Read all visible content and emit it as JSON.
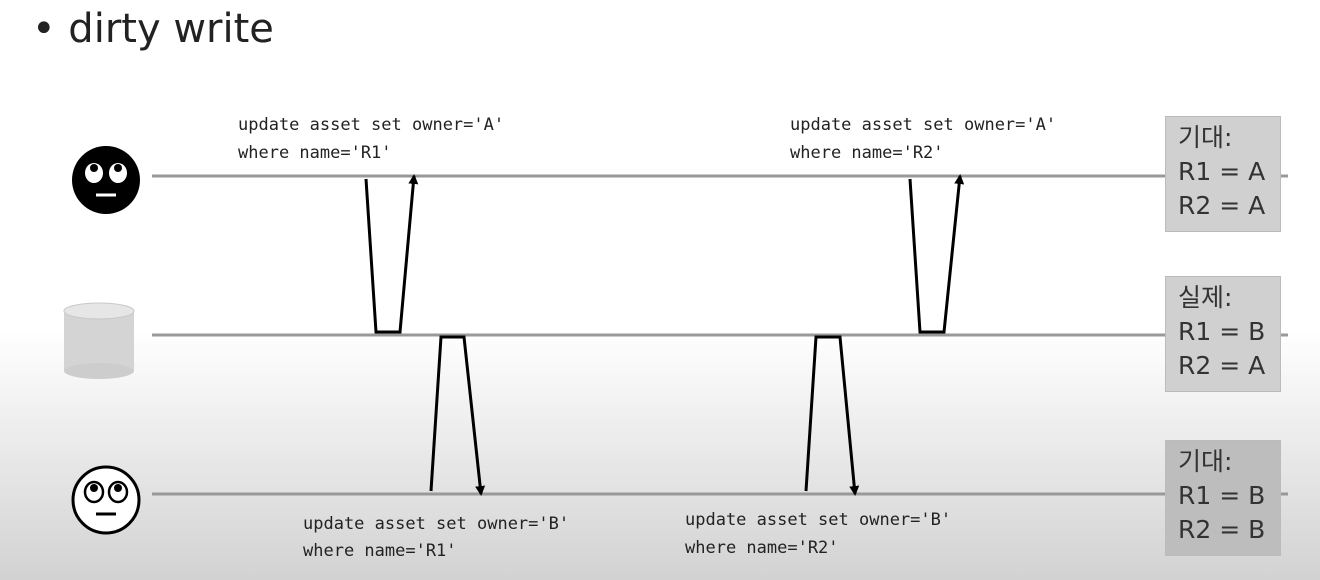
{
  "title": "• dirty write",
  "boxes": [
    {
      "heading": "기대:",
      "r1": "R1 = A",
      "r2": "R2 = A"
    },
    {
      "heading": "실제:",
      "r1": "R1 = B",
      "r2": "R2 = A"
    },
    {
      "heading": "기대:",
      "r1": "R1 = B",
      "r2": "R2 = B"
    }
  ],
  "queries": [
    {
      "line1": "update asset set owner='A'",
      "line2": "where name='R1'"
    },
    {
      "line1": "update asset set owner='A'",
      "line2": "where name='R2'"
    },
    {
      "line1": "update asset set owner='B'",
      "line2": "where name='R1'"
    },
    {
      "line1": "update asset set owner='B'",
      "line2": "where name='R2'"
    }
  ],
  "icons": [
    "rolling-eyes-face-black-icon",
    "database-cylinder-icon",
    "rolling-eyes-face-outline-icon"
  ]
}
